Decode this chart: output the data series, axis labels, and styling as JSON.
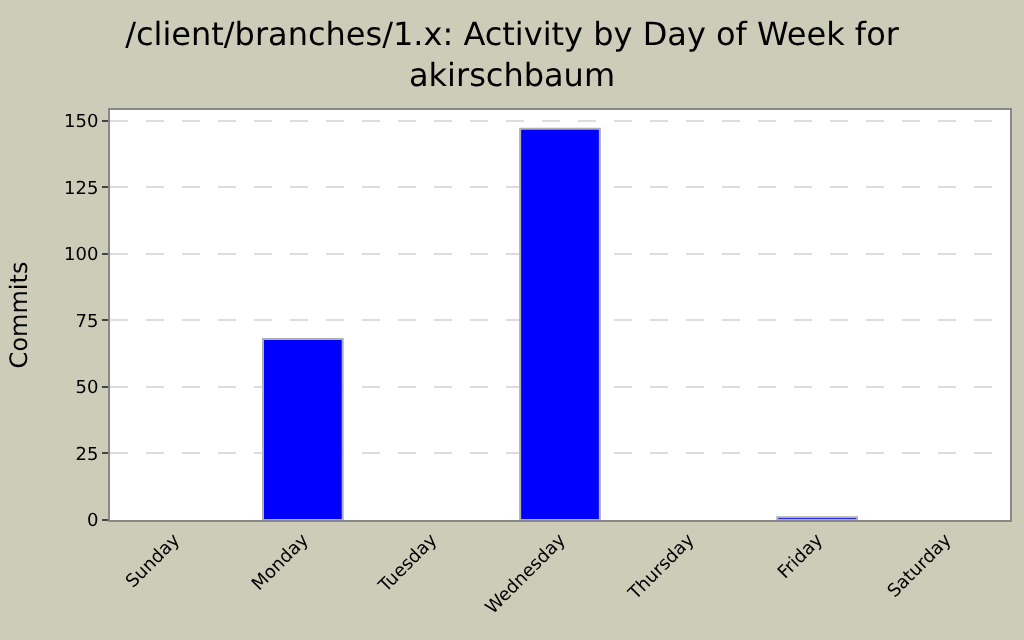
{
  "chart_data": {
    "type": "bar",
    "title": "/client/branches/1.x: Activity by Day of Week for akirschbaum",
    "ylabel": "Commits",
    "categories": [
      "Sunday",
      "Monday",
      "Tuesday",
      "Wednesday",
      "Thursday",
      "Friday",
      "Saturday"
    ],
    "values": [
      0,
      68,
      0,
      147,
      0,
      1,
      0
    ],
    "color": "#0000ff",
    "ylim": [
      0,
      154
    ],
    "yticks": [
      0,
      25,
      50,
      75,
      100,
      125,
      150
    ],
    "grid": "y"
  }
}
